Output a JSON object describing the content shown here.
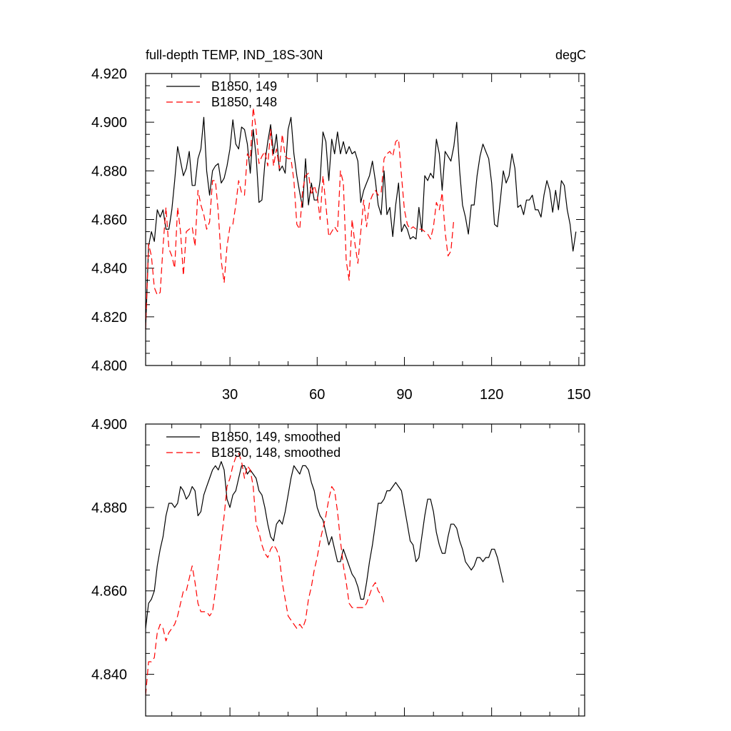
{
  "chart_data": [
    {
      "type": "line",
      "title": "full-depth TEMP, IND_18S-30N",
      "units": "degC",
      "xlim": [
        1,
        152
      ],
      "ylim": [
        4.8,
        4.92
      ],
      "xticks": [
        30,
        60,
        90,
        120,
        150
      ],
      "xtick_labels": [
        "30",
        "60",
        "90",
        "120",
        "150"
      ],
      "yticks": [
        4.8,
        4.82,
        4.84,
        4.86,
        4.88,
        4.9,
        4.92
      ],
      "ytick_labels": [
        "4.800",
        "4.820",
        "4.840",
        "4.860",
        "4.880",
        "4.900",
        "4.920"
      ],
      "legend_location": "top-left",
      "series": [
        {
          "name": "B1850, 149",
          "color": "#000000",
          "dash": "solid",
          "values": [
            4.815,
            4.849,
            4.855,
            4.851,
            4.864,
            4.861,
            4.864,
            4.856,
            4.856,
            4.864,
            4.876,
            4.89,
            4.884,
            4.878,
            4.881,
            4.888,
            4.874,
            4.874,
            4.885,
            4.889,
            4.902,
            4.88,
            4.87,
            4.88,
            4.882,
            4.883,
            4.875,
            4.877,
            4.882,
            4.889,
            4.901,
            4.891,
            4.889,
            4.898,
            4.897,
            4.891,
            4.879,
            4.897,
            4.886,
            4.867,
            4.868,
            4.883,
            4.892,
            4.899,
            4.887,
            4.895,
            4.88,
            4.882,
            4.879,
            4.897,
            4.902,
            4.887,
            4.878,
            4.871,
            4.865,
            4.885,
            4.866,
            4.875,
            4.868,
            4.868,
            4.876,
            4.896,
            4.892,
            4.876,
            4.893,
            4.887,
            4.896,
            4.887,
            4.892,
            4.887,
            4.89,
            4.887,
            4.888,
            4.884,
            4.867,
            4.872,
            4.875,
            4.878,
            4.884,
            4.876,
            4.866,
            4.862,
            4.88,
            4.862,
            4.865,
            4.853,
            4.866,
            4.875,
            4.855,
            4.858,
            4.856,
            4.852,
            4.853,
            4.852,
            4.865,
            4.855,
            4.878,
            4.876,
            4.879,
            4.877,
            4.893,
            4.887,
            4.872,
            4.888,
            4.886,
            4.884,
            4.89,
            4.9,
            4.88,
            4.866,
            4.861,
            4.854,
            4.866,
            4.866,
            4.878,
            4.886,
            4.891,
            4.888,
            4.885,
            4.875,
            4.858,
            4.857,
            4.868,
            4.88,
            4.875,
            4.878,
            4.887,
            4.881,
            4.865,
            4.866,
            4.862,
            4.868,
            4.868,
            4.87,
            4.864,
            4.864,
            4.861,
            4.87,
            4.876,
            4.872,
            4.863,
            4.872,
            4.864,
            4.876,
            4.874,
            4.864,
            4.858,
            4.847,
            4.855
          ]
        },
        {
          "name": "B1850, 148",
          "color": "#ff0000",
          "dash": "dashed",
          "values": [
            4.815,
            4.85,
            4.845,
            4.832,
            4.829,
            4.83,
            4.849,
            4.865,
            4.848,
            4.845,
            4.84,
            4.865,
            4.855,
            4.837,
            4.855,
            4.856,
            4.857,
            4.849,
            4.872,
            4.866,
            4.862,
            4.856,
            4.859,
            4.876,
            4.876,
            4.863,
            4.843,
            4.834,
            4.849,
            4.857,
            4.858,
            4.866,
            4.876,
            4.871,
            4.87,
            4.887,
            4.885,
            4.906,
            4.897,
            4.883,
            4.886,
            4.888,
            4.882,
            4.897,
            4.882,
            4.889,
            4.881,
            4.895,
            4.886,
            4.885,
            4.885,
            4.876,
            4.858,
            4.856,
            4.872,
            4.878,
            4.879,
            4.87,
            4.874,
            4.87,
            4.86,
            4.878,
            4.866,
            4.853,
            4.855,
            4.857,
            4.855,
            4.88,
            4.875,
            4.843,
            4.835,
            4.86,
            4.85,
            4.842,
            4.855,
            4.868,
            4.857,
            4.867,
            4.87,
            4.872,
            4.87,
            4.871,
            4.885,
            4.887,
            4.888,
            4.886,
            4.892,
            4.893,
            4.878,
            4.864,
            4.858,
            4.856,
            4.857,
            4.856,
            4.856,
            4.856,
            4.855,
            4.854,
            4.852,
            4.857,
            4.867,
            4.864,
            4.871,
            4.855,
            4.845,
            4.847,
            4.86
          ]
        }
      ]
    },
    {
      "type": "line",
      "xlim": [
        1,
        152
      ],
      "ylim": [
        4.83,
        4.9
      ],
      "xticks": [
        30,
        60,
        90,
        120,
        150
      ],
      "yticks": [
        4.84,
        4.86,
        4.88,
        4.9
      ],
      "ytick_labels": [
        "4.840",
        "4.860",
        "4.880",
        "4.900"
      ],
      "legend_location": "top-left",
      "series": [
        {
          "name": "B1850, 149, smoothed",
          "color": "#000000",
          "dash": "solid",
          "values": [
            4.851,
            4.857,
            4.858,
            4.86,
            4.866,
            4.87,
            4.873,
            4.878,
            4.881,
            4.881,
            4.88,
            4.881,
            4.885,
            4.884,
            4.882,
            4.883,
            4.885,
            4.884,
            4.878,
            4.879,
            4.883,
            4.885,
            4.887,
            4.889,
            4.89,
            4.889,
            4.891,
            4.889,
            4.882,
            4.88,
            4.883,
            4.884,
            4.887,
            4.89,
            4.89,
            4.888,
            4.889,
            4.888,
            4.887,
            4.884,
            4.883,
            4.88,
            4.876,
            4.873,
            4.872,
            4.876,
            4.877,
            4.876,
            4.879,
            4.883,
            4.887,
            4.89,
            4.889,
            4.888,
            4.89,
            4.89,
            4.889,
            4.886,
            4.884,
            4.88,
            4.878,
            4.877,
            4.874,
            4.871,
            4.873,
            4.87,
            4.867,
            4.867,
            4.87,
            4.868,
            4.866,
            4.864,
            4.863,
            4.861,
            4.858,
            4.858,
            4.862,
            4.867,
            4.871,
            4.876,
            4.881,
            4.881,
            4.882,
            4.884,
            4.884,
            4.885,
            4.886,
            4.885,
            4.884,
            4.88,
            4.876,
            4.872,
            4.871,
            4.867,
            4.868,
            4.873,
            4.878,
            4.882,
            4.882,
            4.879,
            4.874,
            4.871,
            4.869,
            4.869,
            4.873,
            4.876,
            4.876,
            4.875,
            4.872,
            4.87,
            4.867,
            4.866,
            4.865,
            4.866,
            4.868,
            4.868,
            4.867,
            4.868,
            4.868,
            4.87,
            4.87,
            4.868,
            4.865,
            4.862
          ]
        },
        {
          "name": "B1850, 148, smoothed",
          "color": "#ff0000",
          "dash": "dashed",
          "values": [
            4.835,
            4.843,
            4.843,
            4.844,
            4.85,
            4.852,
            4.851,
            4.848,
            4.85,
            4.851,
            4.852,
            4.854,
            4.857,
            4.86,
            4.86,
            4.863,
            4.866,
            4.862,
            4.857,
            4.855,
            4.855,
            4.855,
            4.854,
            4.855,
            4.86,
            4.866,
            4.872,
            4.878,
            4.885,
            4.887,
            4.89,
            4.892,
            4.893,
            4.891,
            4.887,
            4.89,
            4.889,
            4.885,
            4.876,
            4.874,
            4.871,
            4.869,
            4.868,
            4.87,
            4.871,
            4.87,
            4.868,
            4.862,
            4.858,
            4.854,
            4.853,
            4.852,
            4.851,
            4.852,
            4.851,
            4.853,
            4.858,
            4.861,
            4.865,
            4.868,
            4.872,
            4.875,
            4.878,
            4.882,
            4.885,
            4.884,
            4.879,
            4.872,
            4.866,
            4.862,
            4.857,
            4.856,
            4.856,
            4.856,
            4.856,
            4.856,
            4.857,
            4.859,
            4.861,
            4.862,
            4.86,
            4.859,
            4.857
          ]
        }
      ]
    }
  ]
}
